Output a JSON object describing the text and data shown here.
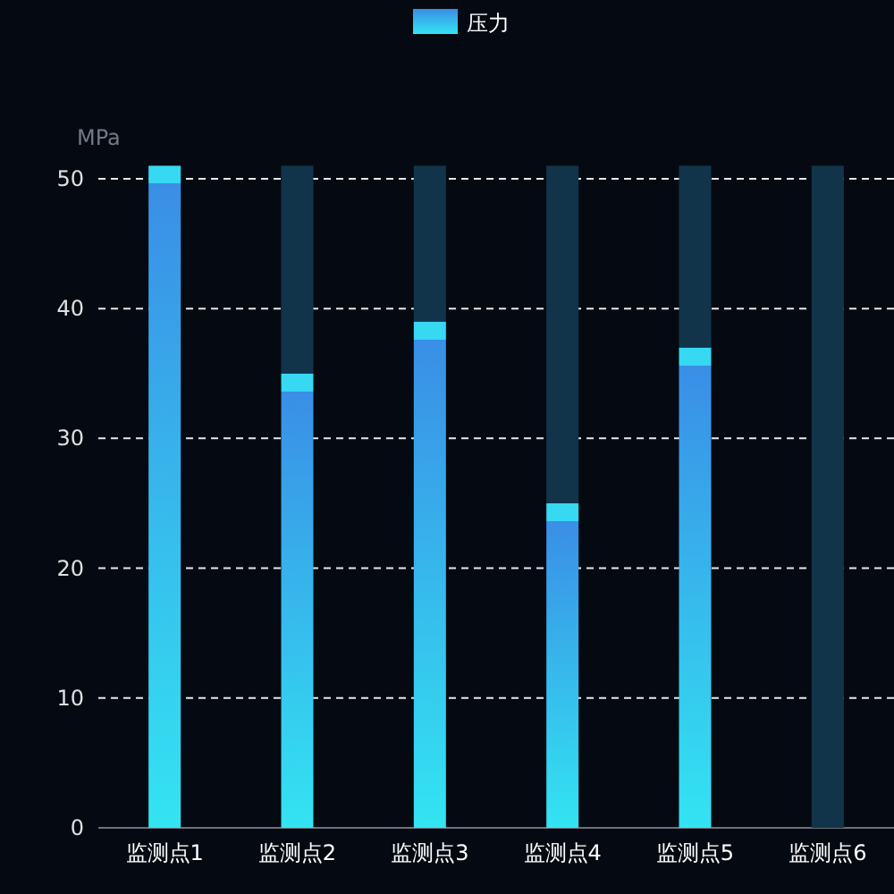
{
  "chart_data": {
    "type": "bar",
    "ylabel": "MPa",
    "categories": [
      "监测点1",
      "监测点2",
      "监测点3",
      "监测点4",
      "监测点5",
      "监测点6"
    ],
    "series": [
      {
        "name": "压力",
        "color": "#3a8ee6",
        "values": [
          51,
          35,
          39,
          25,
          37,
          0
        ]
      },
      {
        "color": "#12344a",
        "values": [
          0,
          16,
          12,
          26,
          14,
          51
        ]
      }
    ],
    "stacked": true,
    "ylim": [
      0,
      51
    ],
    "yticks": [
      0,
      10,
      20,
      30,
      40,
      50
    ],
    "grid": "y",
    "legend": "top"
  }
}
